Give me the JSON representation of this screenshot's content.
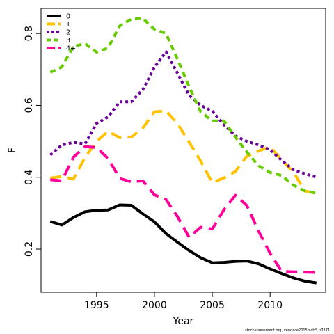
{
  "chart_data": {
    "type": "line",
    "xlabel": "Year",
    "ylabel": "F",
    "xlim": [
      1990.2,
      2014.8
    ],
    "ylim": [
      0.08,
      0.87
    ],
    "x_ticks": [
      1995,
      2000,
      2005,
      2010
    ],
    "y_ticks": [
      0.2,
      0.4,
      0.6,
      0.8
    ],
    "grid": false,
    "legend_position": "top-left",
    "x": [
      1991,
      1992,
      1993,
      1994,
      1995,
      1996,
      1997,
      1998,
      1999,
      2000,
      2001,
      2002,
      2003,
      2004,
      2005,
      2006,
      2007,
      2008,
      2009,
      2010,
      2011,
      2012,
      2013,
      2014
    ],
    "series": [
      {
        "name": "0",
        "color": "#000000",
        "dash": "solid",
        "values": [
          0.277,
          0.267,
          0.288,
          0.304,
          0.308,
          0.309,
          0.323,
          0.322,
          0.298,
          0.276,
          0.243,
          0.219,
          0.196,
          0.176,
          0.162,
          0.163,
          0.166,
          0.167,
          0.159,
          0.145,
          0.132,
          0.12,
          0.111,
          0.106
        ]
      },
      {
        "name": "1",
        "color": "#FFC200",
        "dash": "long",
        "values": [
          0.398,
          0.402,
          0.395,
          0.455,
          0.5,
          0.528,
          0.51,
          0.512,
          0.537,
          0.582,
          0.585,
          0.549,
          0.498,
          0.445,
          0.385,
          0.398,
          0.416,
          0.459,
          0.473,
          0.485,
          0.448,
          0.415,
          0.362,
          0.355
        ]
      },
      {
        "name": "2",
        "color": "#6A0099",
        "dash": "short",
        "values": [
          0.462,
          0.49,
          0.497,
          0.493,
          0.55,
          0.568,
          0.61,
          0.61,
          0.644,
          0.706,
          0.749,
          0.689,
          0.628,
          0.6,
          0.584,
          0.546,
          0.515,
          0.5,
          0.49,
          0.477,
          0.447,
          0.421,
          0.41,
          0.4
        ]
      },
      {
        "name": "3",
        "color": "#66CC00",
        "dash": "medium",
        "values": [
          0.692,
          0.707,
          0.764,
          0.772,
          0.748,
          0.76,
          0.821,
          0.84,
          0.842,
          0.812,
          0.8,
          0.728,
          0.652,
          0.582,
          0.557,
          0.557,
          0.512,
          0.47,
          0.432,
          0.413,
          0.405,
          0.378,
          0.362,
          0.356
        ]
      },
      {
        "name": "4+",
        "color": "#FF0099",
        "dash": "long",
        "values": [
          0.393,
          0.39,
          0.456,
          0.485,
          0.483,
          0.452,
          0.397,
          0.387,
          0.39,
          0.351,
          0.338,
          0.29,
          0.233,
          0.261,
          0.256,
          0.309,
          0.35,
          0.321,
          0.25,
          0.188,
          0.138,
          0.137,
          0.136,
          0.135
        ]
      }
    ]
  },
  "footnote": "stockassessment.org, vendace2015msHS, r7171"
}
